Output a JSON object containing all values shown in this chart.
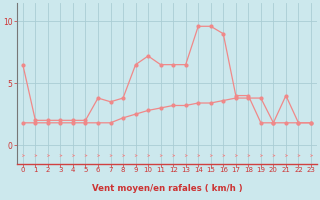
{
  "xlabel": "Vent moyen/en rafales ( km/h )",
  "bg_color": "#cce8ed",
  "grid_color": "#aacdd4",
  "line_color": "#f08888",
  "x_ticks": [
    0,
    1,
    2,
    3,
    4,
    5,
    6,
    7,
    8,
    9,
    10,
    11,
    12,
    13,
    14,
    15,
    16,
    17,
    18,
    19,
    20,
    21,
    22,
    23
  ],
  "y_ticks": [
    0,
    5,
    10
  ],
  "ylim": [
    -1.5,
    11.5
  ],
  "xlim": [
    -0.5,
    23.5
  ],
  "series1_x": [
    0,
    1,
    2,
    3,
    4,
    5,
    6,
    7,
    8,
    9,
    10,
    11,
    12,
    13,
    14,
    15,
    16,
    17,
    18,
    19,
    20,
    21,
    22,
    23
  ],
  "series1_y": [
    6.5,
    2.0,
    2.0,
    2.0,
    2.0,
    2.0,
    3.8,
    3.5,
    3.8,
    6.5,
    7.2,
    6.5,
    6.5,
    6.5,
    9.6,
    9.6,
    9.0,
    4.0,
    4.0,
    1.8,
    1.8,
    4.0,
    1.8,
    1.8
  ],
  "series2_x": [
    0,
    1,
    2,
    3,
    4,
    5,
    6,
    7,
    8,
    9,
    10,
    11,
    12,
    13,
    14,
    15,
    16,
    17,
    18,
    19,
    20,
    21,
    22,
    23
  ],
  "series2_y": [
    1.8,
    1.8,
    1.8,
    1.8,
    1.8,
    1.8,
    1.8,
    1.8,
    2.2,
    2.5,
    2.8,
    3.0,
    3.2,
    3.2,
    3.4,
    3.4,
    3.6,
    3.8,
    3.8,
    3.8,
    1.8,
    1.8,
    1.8,
    1.8
  ],
  "marker_size": 2.0,
  "line_width": 0.9,
  "tick_fontsize_x": 5.0,
  "tick_fontsize_y": 5.5,
  "xlabel_fontsize": 6.2,
  "bottom_spine_color": "#d04040",
  "left_spine_color": "#777777"
}
